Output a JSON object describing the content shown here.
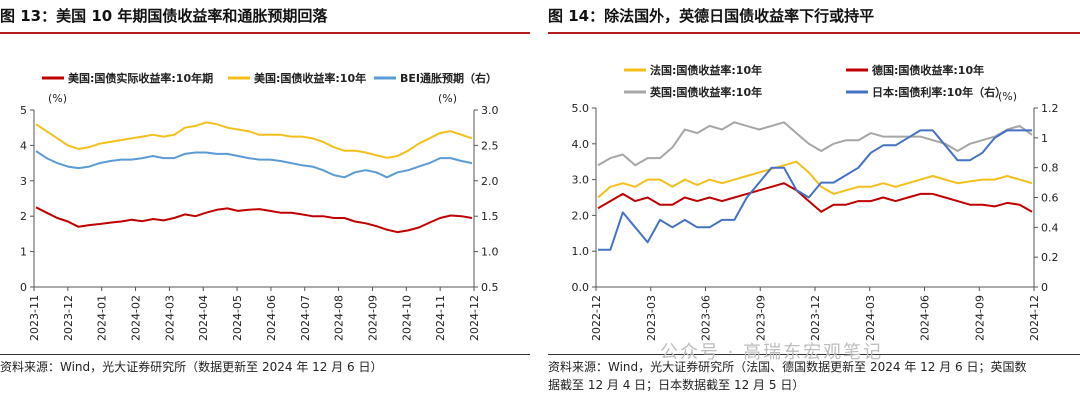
{
  "left": {
    "title": "图 13：美国 10 年期国债收益率和通胀预期回落",
    "source": "资料来源：Wind，光大证券研究所（数据更新至 2024 年 12 月 6 日）",
    "chart_data": {
      "type": "line",
      "x_ticks": [
        "2023-11",
        "2023-12",
        "2024-01",
        "2024-02",
        "2024-03",
        "2024-04",
        "2024-05",
        "2024-06",
        "2024-07",
        "2024-08",
        "2024-09",
        "2024-10",
        "2024-11",
        "2024-12"
      ],
      "y_left": {
        "unit": "(%)",
        "lim": [
          0,
          5
        ],
        "ticks": [
          "0",
          "1",
          "2",
          "3",
          "4",
          "5"
        ]
      },
      "y_right": {
        "unit": "(%)",
        "lim": [
          0.5,
          3.0
        ],
        "ticks": [
          "0.5",
          "1.0",
          "1.5",
          "2.0",
          "2.5",
          "3.0"
        ]
      },
      "series": [
        {
          "name": "美国:国债实际收益率:10年期",
          "color": "#c00000",
          "axis": "left",
          "values": [
            2.25,
            2.1,
            1.95,
            1.85,
            1.7,
            1.75,
            1.78,
            1.82,
            1.85,
            1.9,
            1.86,
            1.92,
            1.88,
            1.95,
            2.05,
            2.0,
            2.1,
            2.18,
            2.22,
            2.15,
            2.18,
            2.2,
            2.15,
            2.1,
            2.1,
            2.05,
            2.0,
            2.0,
            1.95,
            1.95,
            1.85,
            1.8,
            1.72,
            1.62,
            1.55,
            1.6,
            1.68,
            1.82,
            1.95,
            2.02,
            2.0,
            1.95
          ]
        },
        {
          "name": "美国:国债收益率:10年",
          "color": "#f5bf19",
          "axis": "left",
          "values": [
            4.6,
            4.4,
            4.2,
            4.0,
            3.9,
            3.95,
            4.05,
            4.1,
            4.15,
            4.2,
            4.25,
            4.3,
            4.25,
            4.3,
            4.5,
            4.55,
            4.65,
            4.6,
            4.5,
            4.45,
            4.4,
            4.3,
            4.3,
            4.3,
            4.25,
            4.25,
            4.2,
            4.1,
            3.95,
            3.85,
            3.85,
            3.8,
            3.72,
            3.65,
            3.7,
            3.85,
            4.05,
            4.2,
            4.35,
            4.4,
            4.3,
            4.2
          ]
        },
        {
          "name": "BEI通胀预期（右）",
          "color": "#5b9bd5",
          "axis": "right",
          "values": [
            2.42,
            2.32,
            2.25,
            2.2,
            2.18,
            2.2,
            2.25,
            2.28,
            2.3,
            2.3,
            2.32,
            2.35,
            2.32,
            2.32,
            2.38,
            2.4,
            2.4,
            2.38,
            2.38,
            2.35,
            2.32,
            2.3,
            2.3,
            2.28,
            2.25,
            2.22,
            2.2,
            2.15,
            2.08,
            2.05,
            2.12,
            2.15,
            2.12,
            2.05,
            2.12,
            2.15,
            2.2,
            2.25,
            2.32,
            2.32,
            2.28,
            2.25
          ]
        }
      ]
    }
  },
  "right": {
    "title": "图 14：除法国外，英德日国债收益率下行或持平",
    "source_line1": "资料来源：Wind，光大证券研究所（法国、德国数据更新至 2024 年 12 月 6 日；英国数",
    "source_line2": "据截至 12 月 4 日；日本数据截至 12 月 5 日）",
    "watermark": "公众号 · 高瑞东宏观笔记",
    "chart_data": {
      "type": "line",
      "x_ticks": [
        "2022-12",
        "2023-03",
        "2023-06",
        "2023-09",
        "2023-12",
        "2024-03",
        "2024-06",
        "2024-09",
        "2024-12"
      ],
      "y_left": {
        "unit": "",
        "lim": [
          0,
          5
        ],
        "ticks": [
          "0.0",
          "1.0",
          "2.0",
          "3.0",
          "4.0",
          "5.0"
        ]
      },
      "y_right": {
        "unit": "(%)",
        "lim": [
          0,
          1.2
        ],
        "ticks": [
          "0",
          "0.2",
          "0.4",
          "0.6",
          "0.8",
          "1",
          "1.2"
        ]
      },
      "series": [
        {
          "name": "法国:国债收益率:10年",
          "color": "#f5bf19",
          "axis": "left",
          "values": [
            2.5,
            2.8,
            2.9,
            2.8,
            3.0,
            3.0,
            2.8,
            3.0,
            2.85,
            3.0,
            2.9,
            3.0,
            3.1,
            3.2,
            3.3,
            3.4,
            3.5,
            3.2,
            2.8,
            2.6,
            2.7,
            2.8,
            2.8,
            2.9,
            2.8,
            2.9,
            3.0,
            3.1,
            3.0,
            2.9,
            2.95,
            3.0,
            3.0,
            3.1,
            3.0,
            2.9
          ]
        },
        {
          "name": "德国:国债收益率:10年",
          "color": "#c00000",
          "axis": "left",
          "values": [
            2.2,
            2.4,
            2.6,
            2.4,
            2.5,
            2.3,
            2.3,
            2.5,
            2.4,
            2.5,
            2.4,
            2.5,
            2.6,
            2.7,
            2.8,
            2.9,
            2.7,
            2.4,
            2.1,
            2.3,
            2.3,
            2.4,
            2.4,
            2.5,
            2.4,
            2.5,
            2.6,
            2.6,
            2.5,
            2.4,
            2.3,
            2.3,
            2.25,
            2.35,
            2.3,
            2.1
          ]
        },
        {
          "name": "英国:国债收益率:10年",
          "color": "#a6a6a6",
          "axis": "left",
          "values": [
            3.4,
            3.6,
            3.7,
            3.4,
            3.6,
            3.6,
            3.9,
            4.4,
            4.3,
            4.5,
            4.4,
            4.6,
            4.5,
            4.4,
            4.5,
            4.6,
            4.3,
            4.0,
            3.8,
            4.0,
            4.1,
            4.1,
            4.3,
            4.2,
            4.2,
            4.2,
            4.2,
            4.1,
            4.0,
            3.8,
            4.0,
            4.1,
            4.2,
            4.4,
            4.5,
            4.25
          ]
        },
        {
          "name": "日本:国债利率:10年（右）",
          "color": "#4472c4",
          "axis": "right",
          "values": [
            0.25,
            0.25,
            0.5,
            0.4,
            0.3,
            0.45,
            0.4,
            0.45,
            0.4,
            0.4,
            0.45,
            0.45,
            0.6,
            0.7,
            0.8,
            0.8,
            0.65,
            0.6,
            0.7,
            0.7,
            0.75,
            0.8,
            0.9,
            0.95,
            0.95,
            1.0,
            1.05,
            1.05,
            0.95,
            0.85,
            0.85,
            0.9,
            1.0,
            1.05,
            1.05,
            1.05
          ]
        }
      ]
    }
  }
}
